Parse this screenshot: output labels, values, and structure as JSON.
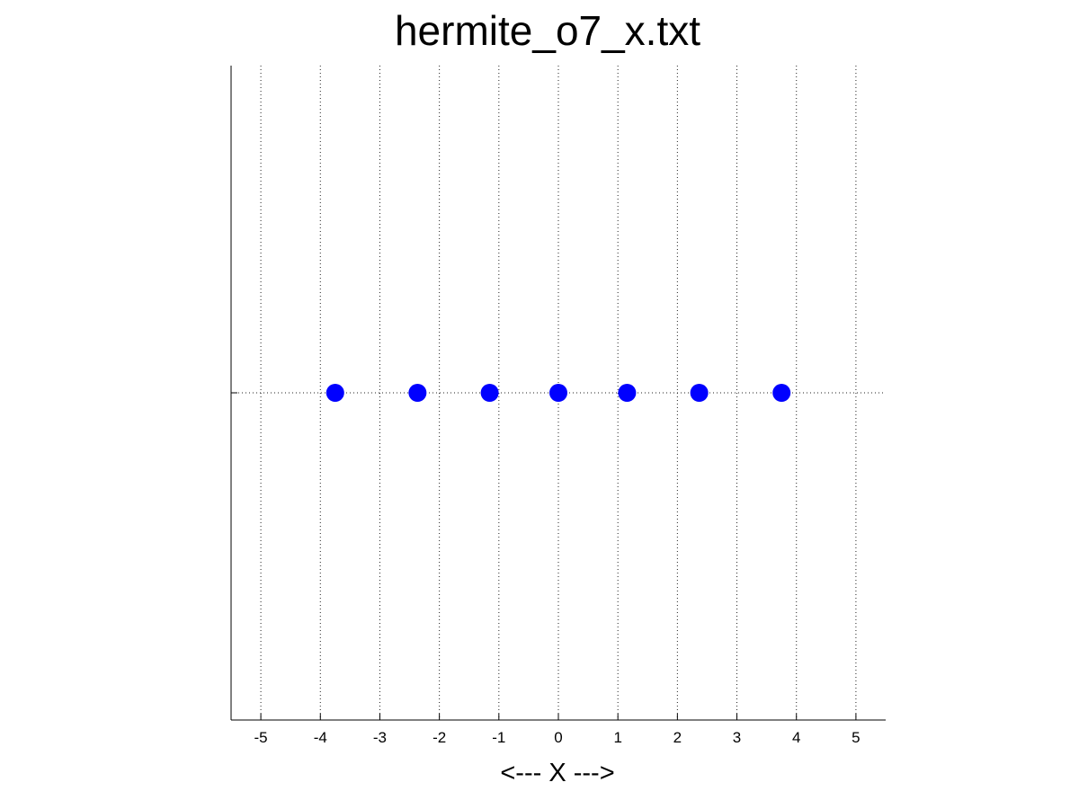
{
  "chart_data": {
    "type": "scatter",
    "title": "hermite_o7_x.txt",
    "xlabel": "<--- X --->",
    "ylabel": "",
    "xlim": [
      -5.5,
      5.5
    ],
    "ylim": [
      -1,
      1
    ],
    "xticks": [
      -5,
      -4,
      -3,
      -2,
      -1,
      0,
      1,
      2,
      3,
      4,
      5
    ],
    "xtick_labels": [
      "-5",
      "-4",
      "-3",
      "-2",
      "-1",
      "0",
      "1",
      "2",
      "3",
      "4",
      "5"
    ],
    "grid": true,
    "series": [
      {
        "name": "hermite_o7_x",
        "color": "#0000ff",
        "x": [
          -3.7504,
          -2.3668,
          -1.1544,
          0.0,
          1.1544,
          2.3668,
          3.7504
        ],
        "y": [
          0,
          0,
          0,
          0,
          0,
          0,
          0
        ]
      }
    ]
  }
}
